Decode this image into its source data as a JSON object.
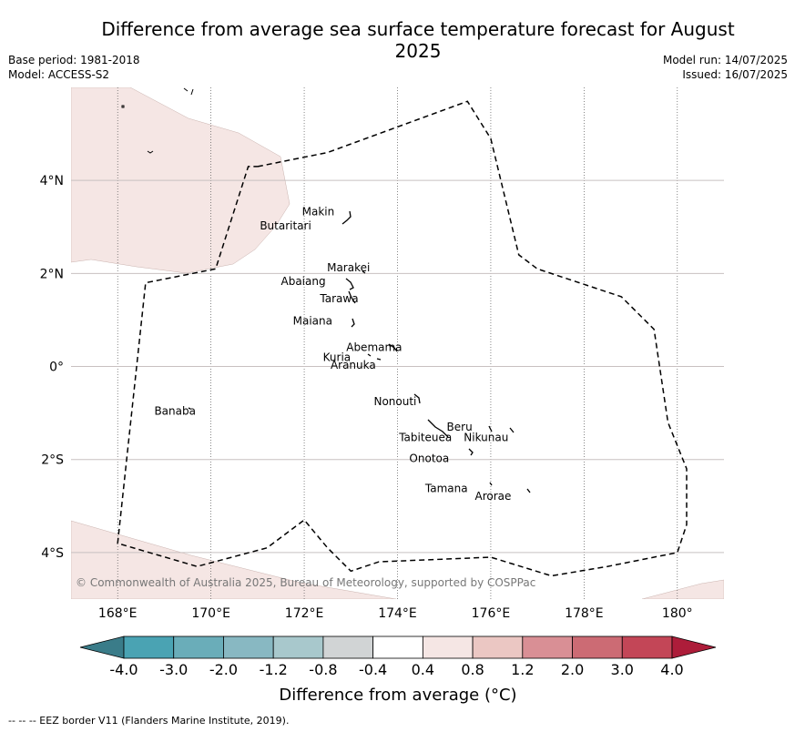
{
  "title": "Difference from average sea surface temperature forecast for August 2025",
  "meta_left": {
    "base_period": "Base period: 1981-2018",
    "model": "Model: ACCESS-S2"
  },
  "meta_right": {
    "model_run": "Model run: 14/07/2025",
    "issued": "Issued: 16/07/2025"
  },
  "map": {
    "lon_range": [
      167,
      181
    ],
    "lat_range": [
      -5,
      6
    ],
    "x_ticks": [
      {
        "value": 168,
        "label": "168°E"
      },
      {
        "value": 170,
        "label": "170°E"
      },
      {
        "value": 172,
        "label": "172°E"
      },
      {
        "value": 174,
        "label": "174°E"
      },
      {
        "value": 176,
        "label": "176°E"
      },
      {
        "value": 178,
        "label": "178°E"
      },
      {
        "value": 180,
        "label": "180°"
      }
    ],
    "y_ticks": [
      {
        "value": 4,
        "label": "4°N"
      },
      {
        "value": 2,
        "label": "2°N"
      },
      {
        "value": 0,
        "label": "0°"
      },
      {
        "value": -2,
        "label": "2°S"
      },
      {
        "value": -4,
        "label": "4°S"
      }
    ],
    "places": [
      {
        "name": "Makin",
        "lon": 172.3,
        "lat": 3.25
      },
      {
        "name": "Butaritari",
        "lon": 171.6,
        "lat": 2.95
      },
      {
        "name": "Marakei",
        "lon": 172.95,
        "lat": 2.05
      },
      {
        "name": "Abaiang",
        "lon": 171.98,
        "lat": 1.75
      },
      {
        "name": "Tarawa",
        "lon": 172.75,
        "lat": 1.38
      },
      {
        "name": "Maiana",
        "lon": 172.18,
        "lat": 0.9
      },
      {
        "name": "Abemama",
        "lon": 173.5,
        "lat": 0.33
      },
      {
        "name": "Kuria",
        "lon": 172.7,
        "lat": 0.12
      },
      {
        "name": "Aranuka",
        "lon": 173.05,
        "lat": -0.05
      },
      {
        "name": "Nonouti",
        "lon": 173.95,
        "lat": -0.83
      },
      {
        "name": "Banaba",
        "lon": 169.23,
        "lat": -1.04
      },
      {
        "name": "Beru",
        "lon": 175.33,
        "lat": -1.38
      },
      {
        "name": "Tabiteuea",
        "lon": 174.6,
        "lat": -1.6
      },
      {
        "name": "Nikunau",
        "lon": 175.9,
        "lat": -1.6
      },
      {
        "name": "Onotoa",
        "lon": 174.68,
        "lat": -2.05
      },
      {
        "name": "Tamana",
        "lon": 175.05,
        "lat": -2.7
      },
      {
        "name": "Arorae",
        "lon": 176.05,
        "lat": -2.87
      }
    ],
    "eez_border": [
      [
        171,
        4.3
      ],
      [
        172.5,
        4.6
      ],
      [
        175.5,
        5.7
      ],
      [
        176.0,
        4.9
      ],
      [
        176.6,
        2.4
      ],
      [
        177.0,
        2.1
      ],
      [
        178.8,
        1.5
      ],
      [
        179.5,
        0.8
      ],
      [
        179.8,
        -1.2
      ],
      [
        180.2,
        -2.2
      ],
      [
        180.2,
        -3.4
      ],
      [
        180.0,
        -4.0
      ],
      [
        178.5,
        -4.3
      ],
      [
        177.3,
        -4.5
      ],
      [
        176.0,
        -4.1
      ],
      [
        173.6,
        -4.2
      ],
      [
        173.0,
        -4.4
      ],
      [
        172.5,
        -3.9
      ],
      [
        172.0,
        -3.3
      ],
      [
        171.2,
        -3.9
      ],
      [
        169.7,
        -4.3
      ],
      [
        168.0,
        -3.8
      ],
      [
        168.6,
        1.8
      ],
      [
        170.1,
        2.1
      ],
      [
        170.8,
        4.3
      ],
      [
        171,
        4.3
      ]
    ],
    "copyright": "© Commonwealth of Australia 2025, Bureau of Meteorology, supported by COSPPac"
  },
  "colorbar": {
    "ticks": [
      "-4.0",
      "-3.0",
      "-2.0",
      "-1.2",
      "-0.8",
      "-0.4",
      "0.4",
      "0.8",
      "1.2",
      "2.0",
      "3.0",
      "4.0"
    ],
    "colors": [
      "#3a7c89",
      "#4aa3b3",
      "#6aadb9",
      "#88b8c2",
      "#a8c8cc",
      "#d1d4d5",
      "#ffffff",
      "#f5e6e4",
      "#ebc7c3",
      "#d98f95",
      "#cc6b74",
      "#c34657",
      "#ad1d3a"
    ],
    "label": "Difference from average (°C)"
  },
  "footer": "-- -- -- EEZ border V11 (Flanders Marine Institute, 2019)."
}
